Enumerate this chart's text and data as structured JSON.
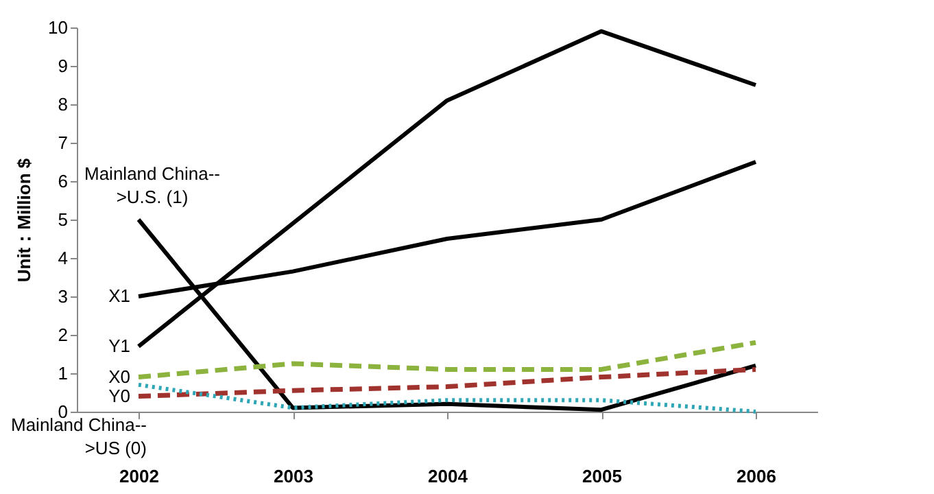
{
  "chart_data": {
    "type": "line",
    "ylabel": "Unit：Million $",
    "categories": [
      "2002",
      "2003",
      "2004",
      "2005",
      "2006"
    ],
    "ylim": [
      0,
      10
    ],
    "yticks": [
      0,
      1,
      2,
      3,
      4,
      5,
      6,
      7,
      8,
      9,
      10
    ],
    "grid": false,
    "legend": false,
    "marker": "none",
    "series": [
      {
        "name": "Y1",
        "color": "#000000",
        "line_style": "solid",
        "values": [
          1.7,
          4.9,
          8.1,
          9.9,
          8.5
        ]
      },
      {
        "name": "X1",
        "color": "#000000",
        "line_style": "solid",
        "values": [
          3.0,
          3.65,
          4.5,
          5.0,
          6.5
        ]
      },
      {
        "name": "Mainland China-->U.S. (1)",
        "color": "#000000",
        "line_style": "solid",
        "values": [
          5.0,
          0.1,
          0.2,
          0.05,
          1.2
        ]
      },
      {
        "name": "X0",
        "color": "#8db33f",
        "line_style": "dashed",
        "values": [
          0.9,
          1.25,
          1.1,
          1.1,
          1.8
        ]
      },
      {
        "name": "Y0",
        "color": "#a0332d",
        "line_style": "dashed",
        "values": [
          0.4,
          0.55,
          0.65,
          0.9,
          1.1
        ]
      },
      {
        "name": "Mainland China-->US (0)",
        "color": "#2fa6b5",
        "line_style": "dotted",
        "values": [
          0.7,
          0.1,
          0.3,
          0.3,
          0.0
        ]
      }
    ]
  }
}
